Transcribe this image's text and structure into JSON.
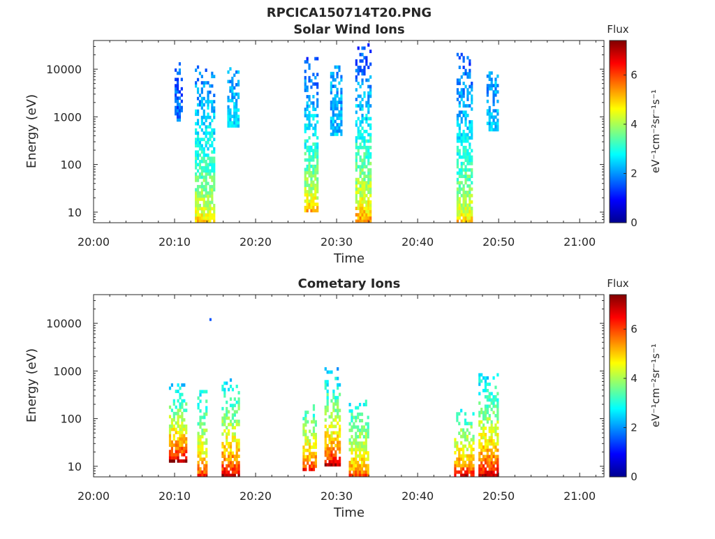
{
  "figure": {
    "title": "RPCICA150714T20.PNG"
  },
  "colorbar": {
    "title": "Flux",
    "label": "eV⁻¹cm⁻²sr⁻¹s⁻¹",
    "ticks": [
      "0",
      "2",
      "4",
      "6"
    ],
    "range": [
      0,
      7.4
    ],
    "colormap": "jet"
  },
  "chart_data": [
    {
      "type": "heatmap",
      "title": "Solar Wind Ions",
      "xlabel": "Time",
      "ylabel": "Energy (eV)",
      "x_ticks": [
        "20:00",
        "20:10",
        "20:20",
        "20:30",
        "20:40",
        "20:50",
        "21:00"
      ],
      "xlim_minutes": [
        0,
        63
      ],
      "y_scale": "log",
      "y_ticks": [
        "10",
        "100",
        "1000",
        "10000"
      ],
      "ylim": [
        6,
        40000
      ],
      "bursts": [
        {
          "t_start": 10.0,
          "t_end": 11.0,
          "e_min": 800,
          "e_max": 14000,
          "low_flux": 1.8,
          "high_flux": 1.6
        },
        {
          "t_start": 12.5,
          "t_end": 14.8,
          "e_min": 6,
          "e_max": 12000,
          "low_flux": 5.0,
          "high_flux": 1.7
        },
        {
          "t_start": 16.5,
          "t_end": 18.0,
          "e_min": 600,
          "e_max": 11000,
          "low_flux": 2.6,
          "high_flux": 2.0
        },
        {
          "t_start": 26.0,
          "t_end": 27.6,
          "e_min": 10,
          "e_max": 18000,
          "low_flux": 5.2,
          "high_flux": 1.5
        },
        {
          "t_start": 29.2,
          "t_end": 30.5,
          "e_min": 400,
          "e_max": 14000,
          "low_flux": 2.4,
          "high_flux": 2.0
        },
        {
          "t_start": 32.3,
          "t_end": 34.2,
          "e_min": 6,
          "e_max": 35000,
          "low_flux": 5.6,
          "high_flux": 1.4
        },
        {
          "t_start": 44.8,
          "t_end": 46.8,
          "e_min": 6,
          "e_max": 22000,
          "low_flux": 5.0,
          "high_flux": 1.5
        },
        {
          "t_start": 48.5,
          "t_end": 50.0,
          "e_min": 500,
          "e_max": 9000,
          "low_flux": 2.4,
          "high_flux": 2.0
        }
      ]
    },
    {
      "type": "heatmap",
      "title": "Cometary Ions",
      "xlabel": "Time",
      "ylabel": "Energy (eV)",
      "x_ticks": [
        "20:00",
        "20:10",
        "20:20",
        "20:30",
        "20:40",
        "20:50",
        "21:00"
      ],
      "xlim_minutes": [
        0,
        63
      ],
      "y_scale": "log",
      "y_ticks": [
        "10",
        "100",
        "1000",
        "10000"
      ],
      "ylim": [
        6,
        40000
      ],
      "bursts": [
        {
          "t_start": 9.3,
          "t_end": 11.5,
          "e_min": 12,
          "e_max": 550,
          "low_flux": 7.2,
          "high_flux": 2.6
        },
        {
          "t_start": 12.8,
          "t_end": 14.0,
          "e_min": 6,
          "e_max": 400,
          "low_flux": 6.2,
          "high_flux": 2.8
        },
        {
          "t_start": 15.8,
          "t_end": 18.0,
          "e_min": 6,
          "e_max": 700,
          "low_flux": 7.0,
          "high_flux": 2.6
        },
        {
          "t_start": 25.8,
          "t_end": 27.5,
          "e_min": 8,
          "e_max": 200,
          "low_flux": 6.5,
          "high_flux": 3.0
        },
        {
          "t_start": 28.5,
          "t_end": 30.5,
          "e_min": 10,
          "e_max": 1200,
          "low_flux": 7.0,
          "high_flux": 2.4
        },
        {
          "t_start": 31.5,
          "t_end": 33.8,
          "e_min": 6,
          "e_max": 250,
          "low_flux": 6.0,
          "high_flux": 2.8
        },
        {
          "t_start": 44.5,
          "t_end": 46.8,
          "e_min": 6,
          "e_max": 160,
          "low_flux": 6.6,
          "high_flux": 3.0
        },
        {
          "t_start": 47.5,
          "t_end": 49.8,
          "e_min": 6,
          "e_max": 900,
          "low_flux": 7.0,
          "high_flux": 2.6
        }
      ],
      "isolated_points": [
        {
          "t_minutes": 14.3,
          "energy": 12000,
          "flux": 1.5
        }
      ]
    }
  ]
}
